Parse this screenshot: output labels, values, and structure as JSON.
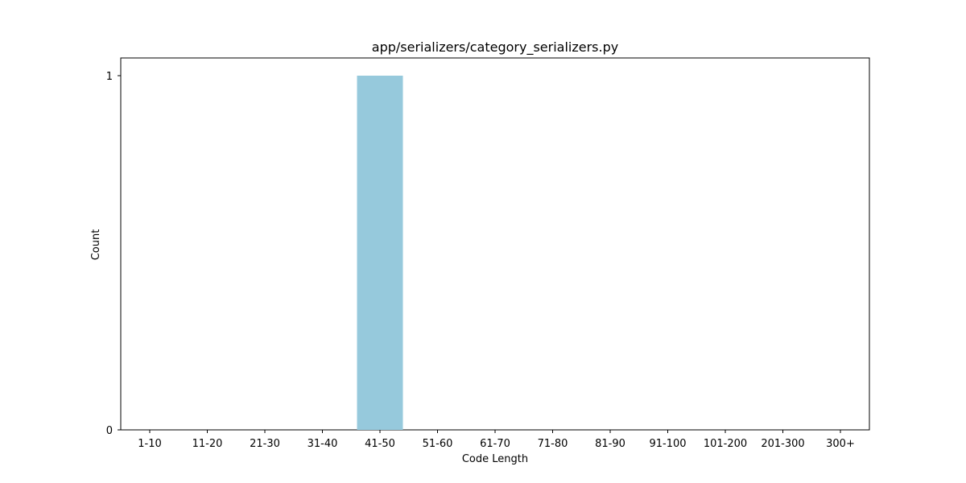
{
  "chart_data": {
    "type": "bar",
    "title": "app/serializers/category_serializers.py",
    "xlabel": "Code Length",
    "ylabel": "Count",
    "categories": [
      "1-10",
      "11-20",
      "21-30",
      "31-40",
      "41-50",
      "51-60",
      "61-70",
      "71-80",
      "81-90",
      "91-100",
      "101-200",
      "201-300",
      "300+"
    ],
    "values": [
      0,
      0,
      0,
      0,
      1,
      0,
      0,
      0,
      0,
      0,
      0,
      0,
      0
    ],
    "ylim": [
      0,
      1
    ],
    "yticks": [
      "0",
      "1"
    ],
    "grid": false,
    "bar_color": "#96c9dc"
  }
}
